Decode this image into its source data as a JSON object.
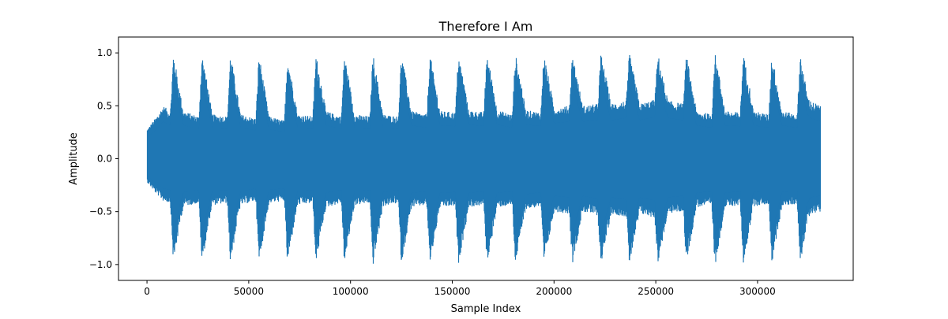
{
  "chart_data": {
    "type": "line",
    "title": "Therefore I Am",
    "xlabel": "Sample Index",
    "ylabel": "Amplitude",
    "xlim": [
      -14000,
      347000
    ],
    "ylim": [
      -1.15,
      1.15
    ],
    "xticks": [
      0,
      50000,
      100000,
      150000,
      200000,
      250000,
      300000
    ],
    "xtick_labels": [
      "0",
      "50000",
      "100000",
      "150000",
      "200000",
      "250000",
      "300000"
    ],
    "yticks": [
      -1.0,
      -0.5,
      0.0,
      0.5,
      1.0
    ],
    "ytick_labels": [
      "−1.0",
      "−0.5",
      "0.0",
      "0.5",
      "1.0"
    ],
    "grid": false,
    "series": [
      {
        "color": "#1f77b4",
        "x_start": 0,
        "x_end": 331000,
        "envelope_x": [
          0,
          4000,
          8000,
          11500,
          13000,
          16500,
          18000,
          25500,
          27000,
          30500,
          32000,
          39500,
          41000,
          44500,
          46000,
          53500,
          55000,
          58500,
          60000,
          67500,
          69000,
          72500,
          74000,
          81500,
          83000,
          86500,
          88000,
          95500,
          97000,
          100500,
          102000,
          109500,
          111000,
          114500,
          116000,
          123500,
          125000,
          128500,
          130000,
          137500,
          139000,
          142500,
          144000,
          151500,
          153000,
          156500,
          158000,
          165500,
          167000,
          170500,
          172000,
          179500,
          181000,
          184500,
          186000,
          193500,
          195000,
          198500,
          200000,
          207500,
          209000,
          212500,
          214000,
          221500,
          223000,
          226500,
          228000,
          235500,
          237000,
          240500,
          242000,
          249500,
          251000,
          254500,
          256000,
          263500,
          265000,
          268500,
          270000,
          277500,
          279000,
          282500,
          284000,
          291500,
          293000,
          296500,
          298000,
          305500,
          307000,
          310500,
          312000,
          319500,
          321000,
          324500,
          326000,
          331000
        ],
        "envelope_max": [
          0.28,
          0.38,
          0.5,
          0.45,
          1.0,
          0.6,
          0.45,
          0.4,
          1.0,
          0.62,
          0.42,
          0.4,
          1.0,
          0.6,
          0.42,
          0.38,
          1.0,
          0.58,
          0.4,
          0.36,
          0.99,
          0.6,
          0.42,
          0.4,
          1.0,
          0.62,
          0.45,
          0.4,
          1.0,
          0.6,
          0.42,
          0.4,
          1.0,
          0.6,
          0.42,
          0.4,
          1.0,
          0.62,
          0.45,
          0.42,
          1.0,
          0.62,
          0.45,
          0.44,
          1.0,
          0.65,
          0.46,
          0.44,
          1.01,
          0.65,
          0.46,
          0.42,
          1.0,
          0.65,
          0.46,
          0.44,
          1.0,
          0.65,
          0.48,
          0.5,
          1.0,
          0.66,
          0.5,
          0.52,
          1.0,
          0.68,
          0.52,
          0.55,
          1.0,
          0.68,
          0.52,
          0.56,
          1.0,
          0.68,
          0.55,
          0.52,
          0.99,
          0.62,
          0.45,
          0.42,
          1.01,
          0.65,
          0.45,
          0.44,
          1.0,
          0.64,
          0.45,
          0.42,
          1.0,
          0.62,
          0.45,
          0.42,
          1.0,
          0.6,
          0.55,
          0.5
        ],
        "envelope_min": [
          -0.22,
          -0.32,
          -0.4,
          -0.42,
          -1.0,
          -0.58,
          -0.45,
          -0.42,
          -1.0,
          -0.6,
          -0.44,
          -0.42,
          -1.0,
          -0.58,
          -0.44,
          -0.4,
          -1.0,
          -0.58,
          -0.42,
          -0.4,
          -1.0,
          -0.6,
          -0.44,
          -0.42,
          -1.0,
          -0.6,
          -0.46,
          -0.42,
          -1.0,
          -0.6,
          -0.44,
          -0.42,
          -1.02,
          -0.62,
          -0.45,
          -0.42,
          -1.0,
          -0.62,
          -0.46,
          -0.44,
          -1.0,
          -0.62,
          -0.46,
          -0.45,
          -1.0,
          -0.64,
          -0.46,
          -0.44,
          -1.0,
          -0.64,
          -0.46,
          -0.44,
          -1.0,
          -0.64,
          -0.48,
          -0.45,
          -1.0,
          -0.66,
          -0.5,
          -0.52,
          -1.0,
          -0.66,
          -0.5,
          -0.54,
          -1.0,
          -0.68,
          -0.52,
          -0.55,
          -1.0,
          -0.68,
          -0.52,
          -0.56,
          -1.0,
          -0.66,
          -0.52,
          -0.5,
          -1.0,
          -0.62,
          -0.46,
          -0.44,
          -1.03,
          -0.64,
          -0.46,
          -0.44,
          -1.0,
          -0.62,
          -0.45,
          -0.43,
          -1.0,
          -0.62,
          -0.45,
          -0.43,
          -1.0,
          -0.6,
          -0.52,
          -0.5
        ]
      }
    ]
  }
}
